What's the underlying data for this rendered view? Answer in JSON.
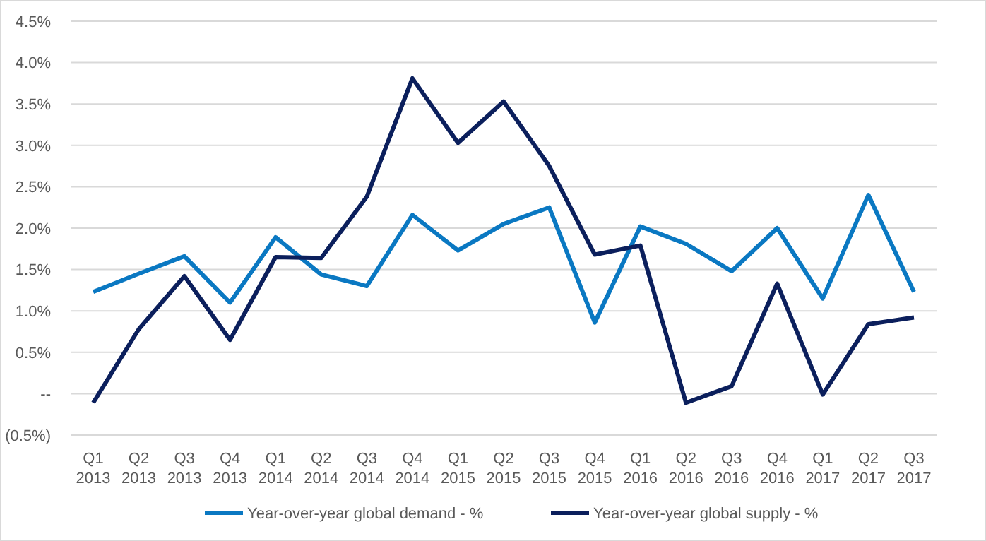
{
  "chart_data": {
    "type": "line",
    "categories": [
      "Q1 2013",
      "Q2 2013",
      "Q3 2013",
      "Q4 2013",
      "Q1 2014",
      "Q2 2014",
      "Q3 2014",
      "Q4 2014",
      "Q1 2015",
      "Q2 2015",
      "Q3 2015",
      "Q4 2015",
      "Q1 2016",
      "Q2 2016",
      "Q3 2016",
      "Q4 2016",
      "Q1 2017",
      "Q2 2017",
      "Q3 2017"
    ],
    "series": [
      {
        "name": "Year-over-year global demand - %",
        "color": "#0a78c2",
        "values": [
          1.23,
          1.45,
          1.66,
          1.1,
          1.89,
          1.44,
          1.3,
          2.16,
          1.73,
          2.05,
          2.25,
          0.86,
          2.02,
          1.81,
          1.48,
          2.0,
          1.15,
          2.4,
          1.23
        ]
      },
      {
        "name": "Year-over-year global supply - %",
        "color": "#0b1f5c",
        "values": [
          -0.11,
          0.78,
          1.42,
          0.65,
          1.65,
          1.64,
          2.38,
          3.81,
          3.03,
          3.53,
          2.75,
          1.68,
          1.79,
          -0.11,
          0.09,
          1.33,
          -0.01,
          0.84,
          0.92
        ]
      }
    ],
    "ylim": [
      -0.5,
      4.5
    ],
    "yticks": [
      {
        "value": -0.5,
        "label": "(0.5%)"
      },
      {
        "value": 0,
        "label": "--"
      },
      {
        "value": 0.5,
        "label": "0.5%"
      },
      {
        "value": 1,
        "label": "1.0%"
      },
      {
        "value": 1.5,
        "label": "1.5%"
      },
      {
        "value": 2,
        "label": "2.0%"
      },
      {
        "value": 2.5,
        "label": "2.5%"
      },
      {
        "value": 3,
        "label": "3.0%"
      },
      {
        "value": 3.5,
        "label": "3.5%"
      },
      {
        "value": 4,
        "label": "4.0%"
      },
      {
        "value": 4.5,
        "label": "4.5%"
      }
    ],
    "grid": "y",
    "legend": "bottom",
    "marker": "none",
    "line_style": "solid"
  }
}
